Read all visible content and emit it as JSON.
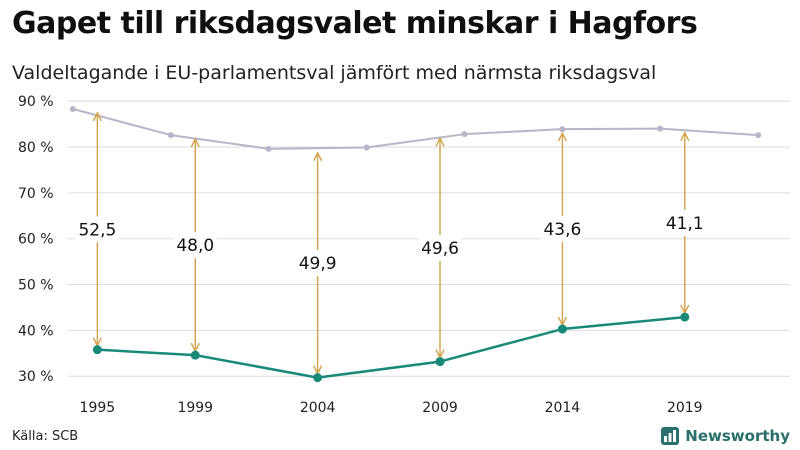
{
  "header": {
    "title": "Gapet till riksdagsvalet minskar i Hagfors",
    "subtitle": "Valdeltagande i EU-parlamentsval jämfört med närmsta riksdagsval"
  },
  "footer": {
    "source": "Källa: SCB",
    "brand": "Newsworthy"
  },
  "colors": {
    "eu_line": "#1a8a78",
    "riksdag_line": "#b9b4c8",
    "gap_arrow": "#d3a24a",
    "grid": "#dddddd",
    "brand": "#2a6f6b"
  },
  "chart_data": {
    "type": "line",
    "title": "Gapet till riksdagsvalet minskar i Hagfors",
    "subtitle": "Valdeltagande i EU-parlamentsval jämfört med närmsta riksdagsval",
    "xlabel": "",
    "ylabel": "",
    "ylim": [
      27,
      92
    ],
    "xlim": [
      1993.8,
      2023.3
    ],
    "y_ticks": [
      30,
      40,
      50,
      60,
      70,
      80,
      90
    ],
    "y_tick_labels": [
      "30 %",
      "40 %",
      "50 %",
      "60 %",
      "70 %",
      "80 %",
      "90 %"
    ],
    "x_ticks": [
      1995,
      1999,
      2004,
      2009,
      2014,
      2019
    ],
    "x_tick_labels": [
      "1995",
      "1999",
      "2004",
      "2009",
      "2014",
      "2019"
    ],
    "grid": true,
    "series": [
      {
        "name": "Riksdagsval",
        "x": [
          1994,
          1998,
          2002,
          2006,
          2010,
          2014,
          2018,
          2022
        ],
        "values": [
          88.3,
          82.6,
          79.6,
          79.9,
          82.8,
          83.9,
          84.0,
          82.6
        ]
      },
      {
        "name": "EU-parlamentsval",
        "x": [
          1995,
          1999,
          2004,
          2009,
          2014,
          2019
        ],
        "values": [
          35.8,
          34.6,
          29.7,
          33.2,
          40.3,
          42.9
        ]
      }
    ],
    "gaps": [
      {
        "x": 1995,
        "from": 88.3,
        "to": 35.8,
        "label": "52,5"
      },
      {
        "x": 1999,
        "from": 82.6,
        "to": 34.6,
        "label": "48,0"
      },
      {
        "x": 2004,
        "from": 79.6,
        "to": 29.7,
        "label": "49,9"
      },
      {
        "x": 2009,
        "from": 82.8,
        "to": 33.2,
        "label": "49,6"
      },
      {
        "x": 2014,
        "from": 83.9,
        "to": 40.3,
        "label": "43,6"
      },
      {
        "x": 2019,
        "from": 84.0,
        "to": 42.9,
        "label": "41,1"
      }
    ]
  }
}
